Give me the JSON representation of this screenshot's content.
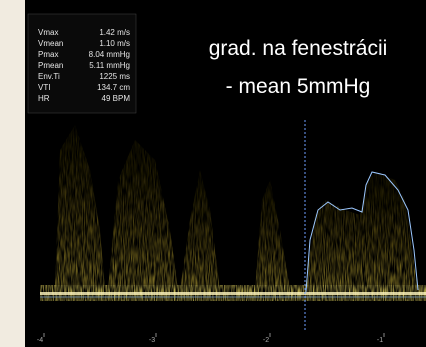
{
  "caption": {
    "lines": [
      "grad. na fenestrácii",
      "- mean 5mmHg"
    ]
  },
  "measurements": {
    "rows": [
      [
        "Vmax",
        "1.42 m/s"
      ],
      [
        "Vmean",
        "1.10 m/s"
      ],
      [
        "Pmax",
        "8.04 mmHg"
      ],
      [
        "Pmean",
        "5.11 mmHg"
      ],
      [
        "Env.Ti",
        "1225 ms"
      ],
      [
        "VTI",
        "134.7 cm"
      ],
      [
        "HR",
        "49 BPM"
      ]
    ]
  },
  "time_axis": {
    "labels": [
      "-4",
      "-3",
      "-2",
      "-1"
    ]
  }
}
